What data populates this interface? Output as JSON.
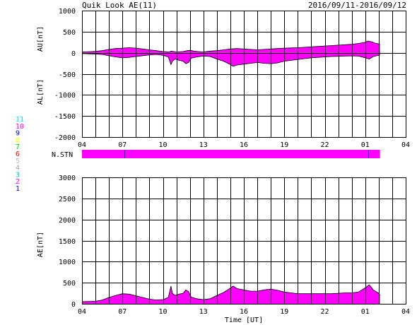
{
  "header": {
    "title": "Quik Look AE(11)",
    "date_range": "2016/09/11-2016/09/12"
  },
  "chart_data": [
    {
      "type": "area",
      "ylabel_top": "AU[nT]",
      "ylabel_bottom": "AL[nT]",
      "ylim": [
        -2000,
        1000
      ],
      "yticks": [
        "1000",
        "500",
        "0",
        "-500",
        "-1000",
        "-1500",
        "-2000"
      ],
      "ytick_values": [
        1000,
        500,
        0,
        -500,
        -1000,
        -1500,
        -2000
      ],
      "xrange_hours": [
        4,
        28
      ],
      "xticks": [
        "04",
        "07",
        "10",
        "13",
        "16",
        "19",
        "22",
        "01",
        "04"
      ],
      "xtick_hours": [
        4,
        7,
        10,
        13,
        16,
        19,
        22,
        25,
        28
      ],
      "grid": true,
      "fill_color": "#ff00ff",
      "series": [
        {
          "x": [
            4,
            4.5,
            5,
            5.5,
            6,
            6.5,
            7,
            7.5,
            8,
            8.5,
            9,
            9.5,
            10,
            10.5,
            10.6,
            10.8,
            11,
            11.5,
            11.8,
            12,
            12.3,
            12.6,
            13,
            13.5,
            14,
            14.5,
            15,
            15.5,
            16,
            16.5,
            17,
            17.5,
            18,
            18.5,
            19,
            19.5,
            20,
            20.5,
            21,
            21.5,
            22,
            22.5,
            23,
            23.5,
            24,
            24.5,
            25,
            25.2,
            25.5,
            25.7,
            26,
            26.1
          ],
          "values": [
            20,
            25,
            35,
            50,
            80,
            100,
            110,
            120,
            110,
            90,
            70,
            50,
            30,
            20,
            40,
            30,
            20,
            30,
            50,
            60,
            40,
            30,
            20,
            40,
            50,
            70,
            90,
            100,
            90,
            80,
            70,
            80,
            90,
            100,
            110,
            115,
            120,
            130,
            140,
            150,
            160,
            170,
            180,
            190,
            200,
            220,
            250,
            280,
            260,
            230,
            210,
            200
          ]
        },
        {
          "x": [
            4,
            4.5,
            5,
            5.5,
            6,
            6.5,
            7,
            7.5,
            8,
            8.5,
            9,
            9.5,
            10,
            10.4,
            10.6,
            10.7,
            10.9,
            11.2,
            11.5,
            11.7,
            11.9,
            12.1,
            12.5,
            13,
            13.5,
            14,
            14.5,
            15,
            15.2,
            15.5,
            16,
            16.5,
            17,
            17.5,
            18,
            18.5,
            19,
            19.5,
            20,
            20.5,
            21,
            21.5,
            22,
            22.5,
            23,
            23.5,
            24,
            24.5,
            25,
            25.3,
            25.6,
            26,
            26.1
          ],
          "values": [
            -20,
            -25,
            -30,
            -40,
            -70,
            -100,
            -120,
            -110,
            -90,
            -70,
            -50,
            -40,
            -60,
            -100,
            -280,
            -200,
            -150,
            -180,
            -200,
            -260,
            -230,
            -130,
            -100,
            -80,
            -90,
            -150,
            -200,
            -280,
            -320,
            -290,
            -270,
            -250,
            -230,
            -250,
            -260,
            -240,
            -200,
            -180,
            -160,
            -140,
            -120,
            -110,
            -100,
            -90,
            -85,
            -80,
            -75,
            -80,
            -120,
            -150,
            -90,
            -60,
            -50
          ]
        }
      ]
    },
    {
      "type": "area",
      "label": "N.STN",
      "ylim": [
        0,
        11
      ],
      "xrange_hours": [
        4,
        28
      ],
      "fill_color": "#ff00ff",
      "x": [
        4,
        26.1
      ],
      "values": [
        11,
        11
      ]
    },
    {
      "type": "area",
      "ylabel": "AE[nT]",
      "xlabel": "Time [UT]",
      "ylim": [
        0,
        3000
      ],
      "yticks": [
        "3000",
        "2500",
        "2000",
        "1500",
        "1000",
        "500",
        "0"
      ],
      "ytick_values": [
        3000,
        2500,
        2000,
        1500,
        1000,
        500,
        0
      ],
      "xrange_hours": [
        4,
        28
      ],
      "xticks": [
        "04",
        "07",
        "10",
        "13",
        "16",
        "19",
        "22",
        "01",
        "04"
      ],
      "xtick_hours": [
        4,
        7,
        10,
        13,
        16,
        19,
        22,
        25,
        28
      ],
      "grid": true,
      "fill_color": "#ff00ff",
      "x": [
        4,
        4.5,
        5,
        5.5,
        6,
        6.5,
        7,
        7.5,
        8,
        8.5,
        9,
        9.5,
        10,
        10.4,
        10.6,
        10.7,
        10.9,
        11.2,
        11.5,
        11.7,
        11.9,
        12.1,
        12.5,
        13,
        13.5,
        14,
        14.5,
        15,
        15.2,
        15.5,
        16,
        16.5,
        17,
        17.5,
        18,
        18.5,
        19,
        19.5,
        20,
        20.5,
        21,
        21.5,
        22,
        22.5,
        23,
        23.5,
        24,
        24.5,
        25,
        25.3,
        25.6,
        26,
        26.1
      ],
      "values": [
        50,
        55,
        60,
        90,
        150,
        200,
        240,
        230,
        190,
        150,
        110,
        90,
        100,
        150,
        420,
        250,
        200,
        230,
        250,
        330,
        290,
        160,
        120,
        100,
        120,
        200,
        270,
        370,
        420,
        360,
        330,
        300,
        300,
        330,
        350,
        320,
        280,
        260,
        240,
        240,
        240,
        240,
        240,
        240,
        250,
        260,
        260,
        280,
        380,
        450,
        330,
        250,
        200
      ]
    }
  ],
  "stations": {
    "labels": [
      "11",
      "10",
      "9",
      "8",
      "7",
      "6",
      "5",
      "4",
      "3",
      "2",
      "1"
    ],
    "colors": [
      "#00e5e5",
      "#ff00ff",
      "#0000ff",
      "#ffff00",
      "#00d000",
      "#ff0000",
      "#c0c0c0",
      "#a0a0a0",
      "#00c8c8",
      "#ff00ff",
      "#0000ff"
    ]
  }
}
